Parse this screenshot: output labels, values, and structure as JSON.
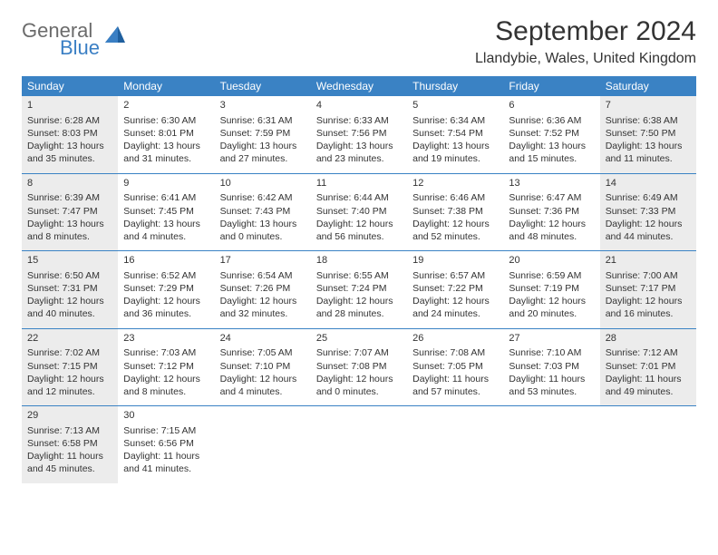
{
  "logo": {
    "text_top": "General",
    "text_bottom": "Blue",
    "top_color": "#6b6b6b",
    "bottom_color": "#3a7fc4",
    "icon_color": "#3a7fc4"
  },
  "title": "September 2024",
  "location": "Llandybie, Wales, United Kingdom",
  "header_bg": "#3a82c4",
  "header_fg": "#ffffff",
  "shade_bg": "#ececec",
  "border_color": "#3a82c4",
  "day_names": [
    "Sunday",
    "Monday",
    "Tuesday",
    "Wednesday",
    "Thursday",
    "Friday",
    "Saturday"
  ],
  "weeks": [
    [
      {
        "num": "1",
        "shaded": true,
        "sunrise": "Sunrise: 6:28 AM",
        "sunset": "Sunset: 8:03 PM",
        "day1": "Daylight: 13 hours",
        "day2": "and 35 minutes."
      },
      {
        "num": "2",
        "shaded": false,
        "sunrise": "Sunrise: 6:30 AM",
        "sunset": "Sunset: 8:01 PM",
        "day1": "Daylight: 13 hours",
        "day2": "and 31 minutes."
      },
      {
        "num": "3",
        "shaded": false,
        "sunrise": "Sunrise: 6:31 AM",
        "sunset": "Sunset: 7:59 PM",
        "day1": "Daylight: 13 hours",
        "day2": "and 27 minutes."
      },
      {
        "num": "4",
        "shaded": false,
        "sunrise": "Sunrise: 6:33 AM",
        "sunset": "Sunset: 7:56 PM",
        "day1": "Daylight: 13 hours",
        "day2": "and 23 minutes."
      },
      {
        "num": "5",
        "shaded": false,
        "sunrise": "Sunrise: 6:34 AM",
        "sunset": "Sunset: 7:54 PM",
        "day1": "Daylight: 13 hours",
        "day2": "and 19 minutes."
      },
      {
        "num": "6",
        "shaded": false,
        "sunrise": "Sunrise: 6:36 AM",
        "sunset": "Sunset: 7:52 PM",
        "day1": "Daylight: 13 hours",
        "day2": "and 15 minutes."
      },
      {
        "num": "7",
        "shaded": true,
        "sunrise": "Sunrise: 6:38 AM",
        "sunset": "Sunset: 7:50 PM",
        "day1": "Daylight: 13 hours",
        "day2": "and 11 minutes."
      }
    ],
    [
      {
        "num": "8",
        "shaded": true,
        "sunrise": "Sunrise: 6:39 AM",
        "sunset": "Sunset: 7:47 PM",
        "day1": "Daylight: 13 hours",
        "day2": "and 8 minutes."
      },
      {
        "num": "9",
        "shaded": false,
        "sunrise": "Sunrise: 6:41 AM",
        "sunset": "Sunset: 7:45 PM",
        "day1": "Daylight: 13 hours",
        "day2": "and 4 minutes."
      },
      {
        "num": "10",
        "shaded": false,
        "sunrise": "Sunrise: 6:42 AM",
        "sunset": "Sunset: 7:43 PM",
        "day1": "Daylight: 13 hours",
        "day2": "and 0 minutes."
      },
      {
        "num": "11",
        "shaded": false,
        "sunrise": "Sunrise: 6:44 AM",
        "sunset": "Sunset: 7:40 PM",
        "day1": "Daylight: 12 hours",
        "day2": "and 56 minutes."
      },
      {
        "num": "12",
        "shaded": false,
        "sunrise": "Sunrise: 6:46 AM",
        "sunset": "Sunset: 7:38 PM",
        "day1": "Daylight: 12 hours",
        "day2": "and 52 minutes."
      },
      {
        "num": "13",
        "shaded": false,
        "sunrise": "Sunrise: 6:47 AM",
        "sunset": "Sunset: 7:36 PM",
        "day1": "Daylight: 12 hours",
        "day2": "and 48 minutes."
      },
      {
        "num": "14",
        "shaded": true,
        "sunrise": "Sunrise: 6:49 AM",
        "sunset": "Sunset: 7:33 PM",
        "day1": "Daylight: 12 hours",
        "day2": "and 44 minutes."
      }
    ],
    [
      {
        "num": "15",
        "shaded": true,
        "sunrise": "Sunrise: 6:50 AM",
        "sunset": "Sunset: 7:31 PM",
        "day1": "Daylight: 12 hours",
        "day2": "and 40 minutes."
      },
      {
        "num": "16",
        "shaded": false,
        "sunrise": "Sunrise: 6:52 AM",
        "sunset": "Sunset: 7:29 PM",
        "day1": "Daylight: 12 hours",
        "day2": "and 36 minutes."
      },
      {
        "num": "17",
        "shaded": false,
        "sunrise": "Sunrise: 6:54 AM",
        "sunset": "Sunset: 7:26 PM",
        "day1": "Daylight: 12 hours",
        "day2": "and 32 minutes."
      },
      {
        "num": "18",
        "shaded": false,
        "sunrise": "Sunrise: 6:55 AM",
        "sunset": "Sunset: 7:24 PM",
        "day1": "Daylight: 12 hours",
        "day2": "and 28 minutes."
      },
      {
        "num": "19",
        "shaded": false,
        "sunrise": "Sunrise: 6:57 AM",
        "sunset": "Sunset: 7:22 PM",
        "day1": "Daylight: 12 hours",
        "day2": "and 24 minutes."
      },
      {
        "num": "20",
        "shaded": false,
        "sunrise": "Sunrise: 6:59 AM",
        "sunset": "Sunset: 7:19 PM",
        "day1": "Daylight: 12 hours",
        "day2": "and 20 minutes."
      },
      {
        "num": "21",
        "shaded": true,
        "sunrise": "Sunrise: 7:00 AM",
        "sunset": "Sunset: 7:17 PM",
        "day1": "Daylight: 12 hours",
        "day2": "and 16 minutes."
      }
    ],
    [
      {
        "num": "22",
        "shaded": true,
        "sunrise": "Sunrise: 7:02 AM",
        "sunset": "Sunset: 7:15 PM",
        "day1": "Daylight: 12 hours",
        "day2": "and 12 minutes."
      },
      {
        "num": "23",
        "shaded": false,
        "sunrise": "Sunrise: 7:03 AM",
        "sunset": "Sunset: 7:12 PM",
        "day1": "Daylight: 12 hours",
        "day2": "and 8 minutes."
      },
      {
        "num": "24",
        "shaded": false,
        "sunrise": "Sunrise: 7:05 AM",
        "sunset": "Sunset: 7:10 PM",
        "day1": "Daylight: 12 hours",
        "day2": "and 4 minutes."
      },
      {
        "num": "25",
        "shaded": false,
        "sunrise": "Sunrise: 7:07 AM",
        "sunset": "Sunset: 7:08 PM",
        "day1": "Daylight: 12 hours",
        "day2": "and 0 minutes."
      },
      {
        "num": "26",
        "shaded": false,
        "sunrise": "Sunrise: 7:08 AM",
        "sunset": "Sunset: 7:05 PM",
        "day1": "Daylight: 11 hours",
        "day2": "and 57 minutes."
      },
      {
        "num": "27",
        "shaded": false,
        "sunrise": "Sunrise: 7:10 AM",
        "sunset": "Sunset: 7:03 PM",
        "day1": "Daylight: 11 hours",
        "day2": "and 53 minutes."
      },
      {
        "num": "28",
        "shaded": true,
        "sunrise": "Sunrise: 7:12 AM",
        "sunset": "Sunset: 7:01 PM",
        "day1": "Daylight: 11 hours",
        "day2": "and 49 minutes."
      }
    ],
    [
      {
        "num": "29",
        "shaded": true,
        "sunrise": "Sunrise: 7:13 AM",
        "sunset": "Sunset: 6:58 PM",
        "day1": "Daylight: 11 hours",
        "day2": "and 45 minutes."
      },
      {
        "num": "30",
        "shaded": false,
        "sunrise": "Sunrise: 7:15 AM",
        "sunset": "Sunset: 6:56 PM",
        "day1": "Daylight: 11 hours",
        "day2": "and 41 minutes."
      },
      {
        "empty": true
      },
      {
        "empty": true
      },
      {
        "empty": true
      },
      {
        "empty": true
      },
      {
        "empty": true
      }
    ]
  ]
}
